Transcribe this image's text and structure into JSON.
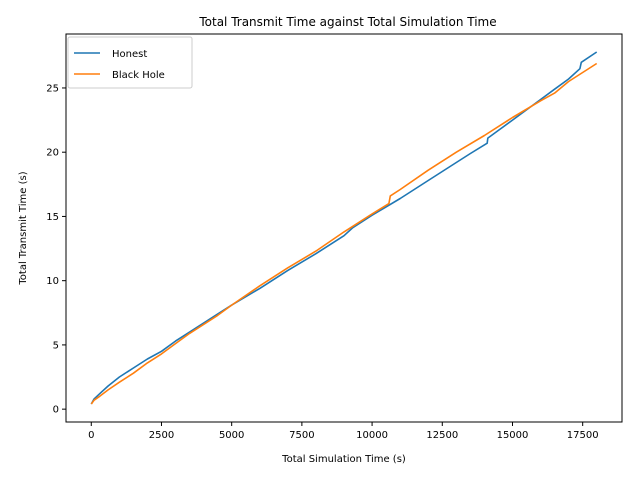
{
  "chart_data": {
    "type": "line",
    "title": "Total Transmit Time against Total Simulation Time",
    "xlabel": "Total Simulation Time (s)",
    "ylabel": "Total Transmit Time (s)",
    "xlim": [
      -900,
      18900
    ],
    "ylim": [
      -1.0,
      29.2
    ],
    "xticks": [
      0,
      2500,
      5000,
      7500,
      10000,
      12500,
      15000,
      17500
    ],
    "xtick_labels": [
      "0",
      "2500",
      "5000",
      "7500",
      "10000",
      "12500",
      "15000",
      "17500"
    ],
    "yticks": [
      0,
      5,
      10,
      15,
      20,
      25
    ],
    "ytick_labels": [
      "0",
      "5",
      "10",
      "15",
      "20",
      "25"
    ],
    "grid": false,
    "legend_position": "top-left",
    "series": [
      {
        "name": "Honest",
        "color": "#1f77b4",
        "x": [
          0,
          100,
          300,
          600,
          1000,
          1500,
          2000,
          2500,
          3000,
          3500,
          4000,
          4500,
          5000,
          6000,
          7000,
          8000,
          9000,
          9300,
          10000,
          11000,
          12000,
          13000,
          13500,
          14100,
          14120,
          14500,
          15000,
          16000,
          16500,
          17000,
          17400,
          17450,
          18000
        ],
        "y": [
          0.4,
          0.8,
          1.2,
          1.8,
          2.5,
          3.2,
          3.9,
          4.5,
          5.3,
          6.0,
          6.7,
          7.4,
          8.1,
          9.4,
          10.8,
          12.1,
          13.5,
          14.1,
          15.1,
          16.4,
          17.8,
          19.2,
          19.9,
          20.7,
          21.1,
          21.7,
          22.5,
          24.1,
          24.9,
          25.7,
          26.5,
          27.0,
          27.8
        ]
      },
      {
        "name": "Black Hole",
        "color": "#ff7f0e",
        "x": [
          0,
          100,
          300,
          600,
          1000,
          1500,
          2000,
          2500,
          3000,
          3500,
          4000,
          4500,
          5000,
          6000,
          7000,
          8000,
          9000,
          10000,
          10600,
          10650,
          11000,
          12000,
          13000,
          14000,
          15000,
          16000,
          16500,
          17000,
          18000
        ],
        "y": [
          0.4,
          0.7,
          1.0,
          1.5,
          2.1,
          2.8,
          3.6,
          4.3,
          5.1,
          5.9,
          6.6,
          7.3,
          8.1,
          9.6,
          11.0,
          12.3,
          13.8,
          15.2,
          16.0,
          16.6,
          17.1,
          18.6,
          20.0,
          21.3,
          22.7,
          24.0,
          24.6,
          25.5,
          26.9
        ]
      }
    ]
  }
}
